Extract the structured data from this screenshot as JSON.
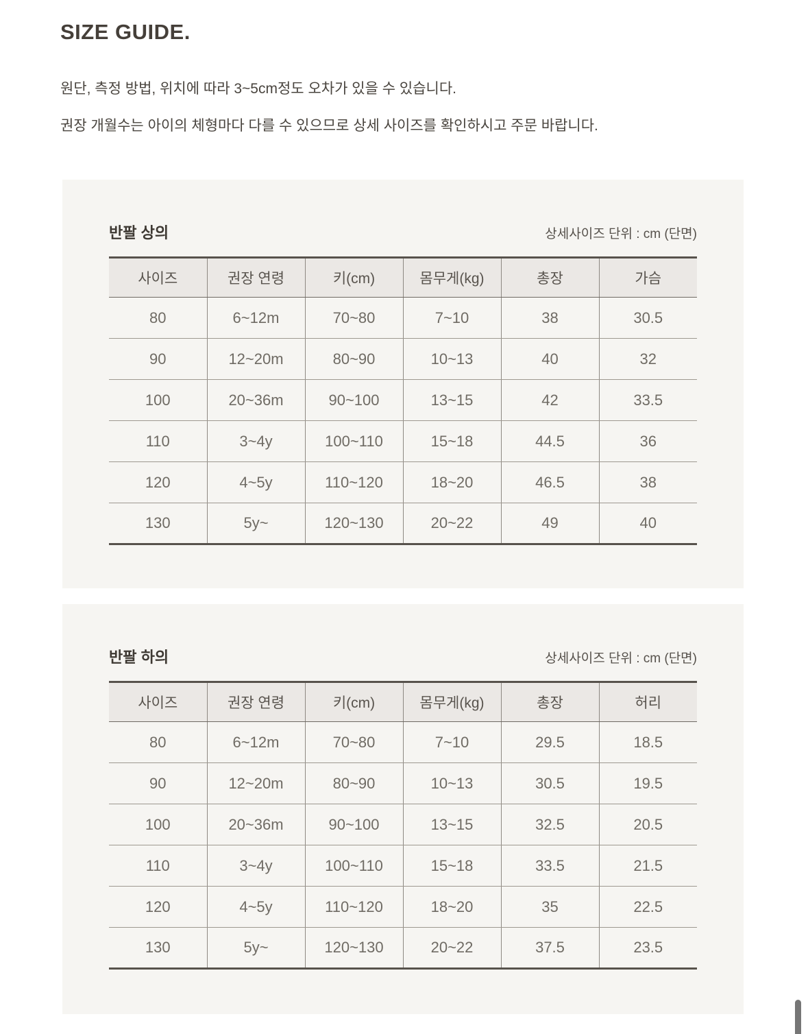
{
  "page": {
    "title": "SIZE GUIDE.",
    "notes": [
      "원단, 측정 방법, 위치에 따라 3~5cm정도 오차가 있을 수 있습니다.",
      "권장 개월수는 아이의 체형마다 다를 수 있으므로 상세 사이즈를 확인하시고 주문 바랍니다."
    ]
  },
  "tables": [
    {
      "title": "반팔 상의",
      "unit_note": "상세사이즈 단위 : cm (단면)",
      "columns": [
        "사이즈",
        "권장 연령",
        "키(cm)",
        "몸무게(kg)",
        "총장",
        "가슴"
      ],
      "rows": [
        [
          "80",
          "6~12m",
          "70~80",
          "7~10",
          "38",
          "30.5"
        ],
        [
          "90",
          "12~20m",
          "80~90",
          "10~13",
          "40",
          "32"
        ],
        [
          "100",
          "20~36m",
          "90~100",
          "13~15",
          "42",
          "33.5"
        ],
        [
          "110",
          "3~4y",
          "100~110",
          "15~18",
          "44.5",
          "36"
        ],
        [
          "120",
          "4~5y",
          "110~120",
          "18~20",
          "46.5",
          "38"
        ],
        [
          "130",
          "5y~",
          "120~130",
          "20~22",
          "49",
          "40"
        ]
      ]
    },
    {
      "title": "반팔 하의",
      "unit_note": "상세사이즈 단위 : cm (단면)",
      "columns": [
        "사이즈",
        "권장 연령",
        "키(cm)",
        "몸무게(kg)",
        "총장",
        "허리"
      ],
      "rows": [
        [
          "80",
          "6~12m",
          "70~80",
          "7~10",
          "29.5",
          "18.5"
        ],
        [
          "90",
          "12~20m",
          "80~90",
          "10~13",
          "30.5",
          "19.5"
        ],
        [
          "100",
          "20~36m",
          "90~100",
          "13~15",
          "32.5",
          "20.5"
        ],
        [
          "110",
          "3~4y",
          "100~110",
          "15~18",
          "33.5",
          "21.5"
        ],
        [
          "120",
          "4~5y",
          "110~120",
          "18~20",
          "35",
          "22.5"
        ],
        [
          "130",
          "5y~",
          "120~130",
          "20~22",
          "37.5",
          "23.5"
        ]
      ]
    }
  ],
  "colors": {
    "page_background": "#ffffff",
    "panel_background": "#f6f5f2",
    "table_header_background": "#ebe8e5",
    "table_outer_border": "#57524c",
    "table_row_separator": "#9d9890",
    "table_column_separator": "#8d8882",
    "title_text": "#453f39",
    "body_text": "#49443e",
    "cell_text": "#6f6b64",
    "scrollbar_thumb": "#767676"
  }
}
